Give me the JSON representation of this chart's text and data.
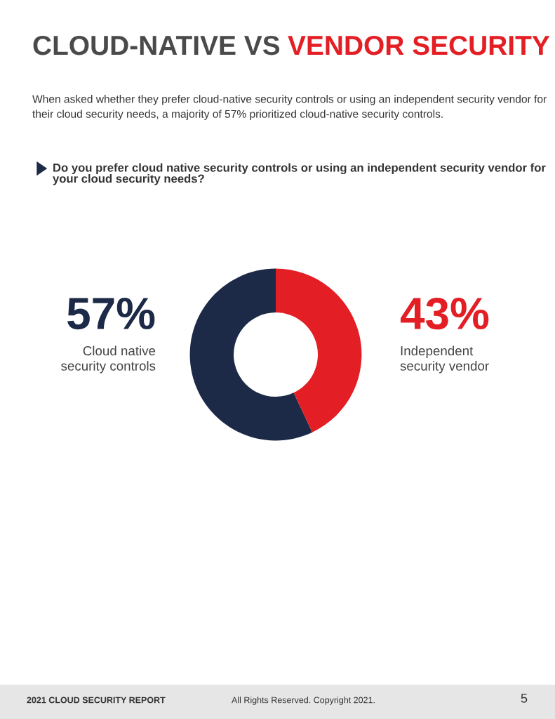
{
  "chart_data": {
    "type": "donut",
    "title": "CLOUD-NATIVE VS VENDOR SECURITY",
    "subtitle": "When asked whether they prefer cloud-native security controls or using an independent security vendor for their cloud security needs, a majority of 57% prioritized cloud-native security controls.",
    "xlabel": "Do you prefer cloud native security controls or using an independent security vendor for your cloud security needs?",
    "categories": [
      "Cloud native\nsecurity controls",
      "Independent\nsecurity vendor"
    ],
    "values": [
      57,
      43
    ],
    "colors": [
      "#1c2a47",
      "#e31e24"
    ],
    "value_labels": [
      "57%",
      "43%"
    ],
    "annotations": [
      "2021 CLOUD SECURITY REPORT",
      "All Rights Reserved. Copyright 2021.",
      "5"
    ]
  }
}
